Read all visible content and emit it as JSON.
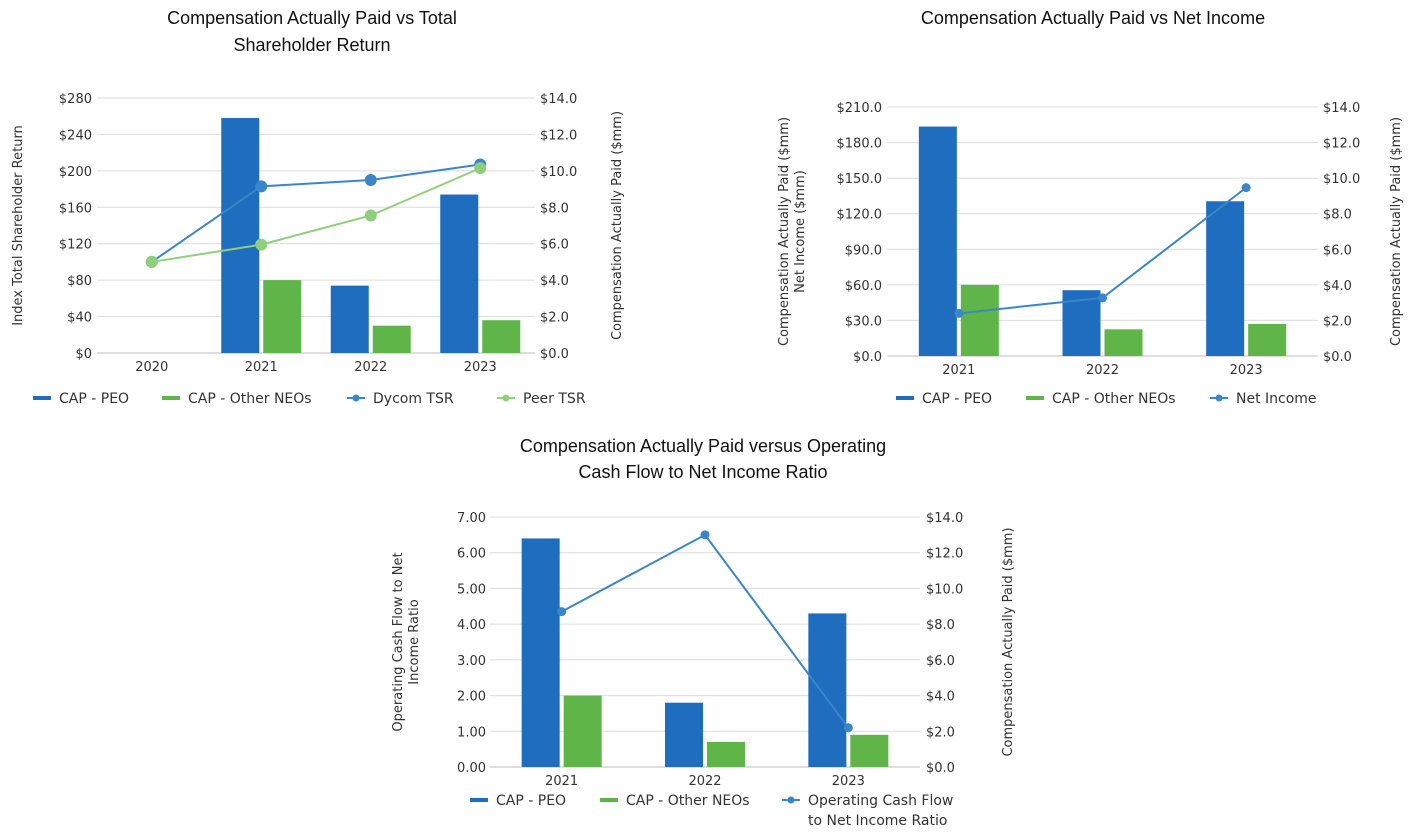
{
  "colors": {
    "cap_peo": "#1f6dbf",
    "cap_other": "#5fb548",
    "dycom_tsr": "#3b86c8",
    "peer_tsr": "#8fcf7b",
    "line_blue": "#3b86c8"
  },
  "chart_data": [
    {
      "type": "bar",
      "title": [
        "Compensation Actually Paid vs Total",
        "Shareholder Return"
      ],
      "categories": [
        "2020",
        "2021",
        "2022",
        "2023"
      ],
      "left_axis": {
        "label": [
          "Index Total Shareholder Return"
        ],
        "ylim": [
          0,
          280
        ],
        "ticks": [
          "$0",
          "$40",
          "$80",
          "$120",
          "$160",
          "$200",
          "$240",
          "$280"
        ]
      },
      "right_axis": {
        "label": [
          "Compensation Actually Paid ($mm)"
        ],
        "ylim": [
          0,
          14
        ],
        "ticks": [
          "$0.0",
          "$2.0",
          "$4.0",
          "$6.0",
          "$8.0",
          "$10.0",
          "$12.0",
          "$14.0"
        ]
      },
      "series": [
        {
          "name": "CAP - PEO",
          "kind": "bar",
          "axis": "right",
          "color_key": "cap_peo",
          "values": [
            null,
            12.9,
            3.7,
            8.7
          ]
        },
        {
          "name": "CAP - Other NEOs",
          "kind": "bar",
          "axis": "right",
          "color_key": "cap_other",
          "values": [
            null,
            4.0,
            1.5,
            1.8
          ]
        },
        {
          "name": "Dycom TSR",
          "kind": "line",
          "axis": "left",
          "color_key": "dycom_tsr",
          "values": [
            100,
            183,
            190,
            207
          ]
        },
        {
          "name": "Peer TSR",
          "kind": "line",
          "axis": "left",
          "color_key": "peer_tsr",
          "values": [
            100,
            119,
            151,
            203
          ]
        }
      ]
    },
    {
      "type": "bar",
      "title": [
        "Compensation Actually Paid vs Net Income"
      ],
      "categories": [
        "2021",
        "2022",
        "2023"
      ],
      "left_axis": {
        "label": [
          "Compensation Actually Paid ($mm)",
          "Net Income ($mm)"
        ],
        "ylim": [
          0,
          210
        ],
        "ticks": [
          "$0.0",
          "$30.0",
          "$60.0",
          "$90.0",
          "$120.0",
          "$150.0",
          "$180.0",
          "$210.0"
        ]
      },
      "right_axis": {
        "label": [
          "Compensation Actually Paid ($mm)"
        ],
        "ylim": [
          0,
          14
        ],
        "ticks": [
          "$0.0",
          "$2.0",
          "$4.0",
          "$6.0",
          "$8.0",
          "$10.0",
          "$12.0",
          "$14.0"
        ]
      },
      "series": [
        {
          "name": "CAP - PEO",
          "kind": "bar",
          "axis": "right",
          "color_key": "cap_peo",
          "values": [
            12.9,
            3.7,
            8.7
          ]
        },
        {
          "name": "CAP - Other NEOs",
          "kind": "bar",
          "axis": "right",
          "color_key": "cap_other",
          "values": [
            4.0,
            1.5,
            1.8
          ]
        },
        {
          "name": "Net Income",
          "kind": "line",
          "axis": "left",
          "color_key": "line_blue",
          "values": [
            36,
            49,
            142
          ]
        }
      ]
    },
    {
      "type": "bar",
      "title": [
        "Compensation Actually Paid versus Operating",
        "Cash Flow to Net Income Ratio"
      ],
      "categories": [
        "2021",
        "2022",
        "2023"
      ],
      "left_axis": {
        "label": [
          "Operating Cash Flow to Net",
          "Income Ratio"
        ],
        "ylim": [
          0,
          7
        ],
        "ticks": [
          "0.00",
          "1.00",
          "2.00",
          "3.00",
          "4.00",
          "5.00",
          "6.00",
          "7.00"
        ]
      },
      "right_axis": {
        "label": [
          "Compensation Actually Paid ($mm)"
        ],
        "ylim": [
          0,
          14
        ],
        "ticks": [
          "$0.0",
          "$2.0",
          "$4.0",
          "$6.0",
          "$8.0",
          "$10.0",
          "$12.0",
          "$14.0"
        ]
      },
      "series": [
        {
          "name": "CAP - PEO",
          "kind": "bar",
          "axis": "right",
          "color_key": "cap_peo",
          "values": [
            12.8,
            3.6,
            8.6
          ]
        },
        {
          "name": "CAP - Other NEOs",
          "kind": "bar",
          "axis": "right",
          "color_key": "cap_other",
          "values": [
            4.0,
            1.4,
            1.8
          ]
        },
        {
          "name": [
            "Operating Cash Flow",
            "to Net Income Ratio"
          ],
          "kind": "line",
          "axis": "left",
          "color_key": "line_blue",
          "values": [
            4.35,
            6.5,
            1.1
          ]
        }
      ]
    }
  ]
}
